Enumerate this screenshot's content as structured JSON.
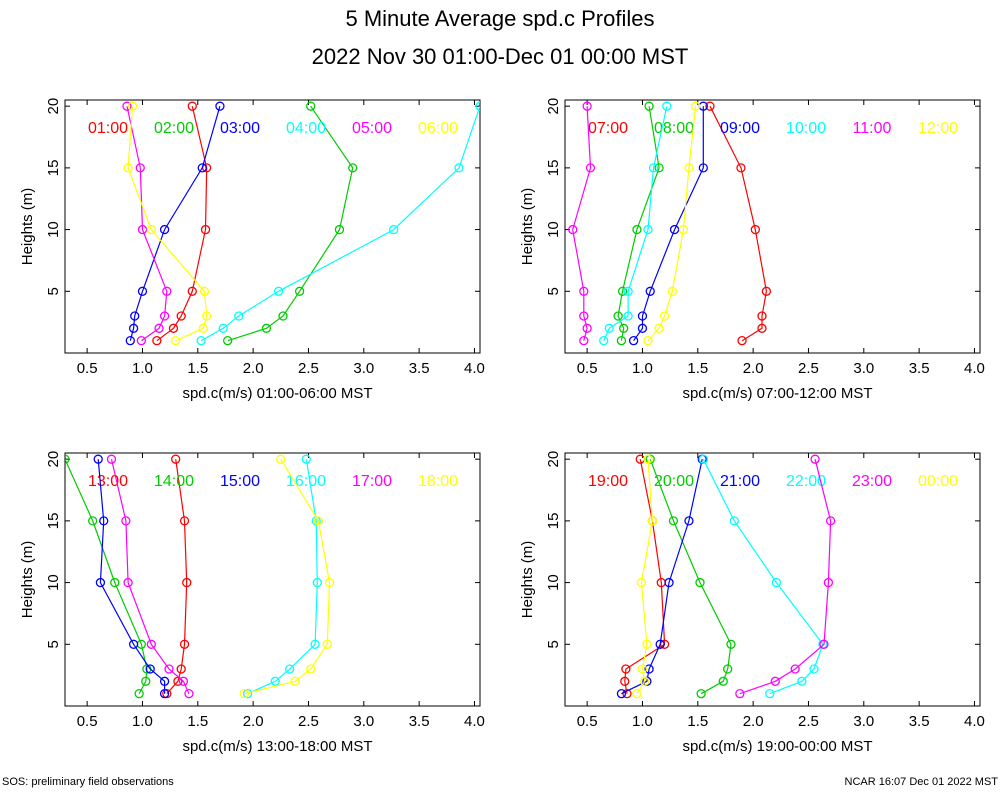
{
  "title": "5 Minute Average spd.c Profiles",
  "subtitle": "2022 Nov 30 01:00-Dec 01 00:00 MST",
  "footer_left": "SOS: preliminary field observations",
  "footer_right": "NCAR 16:07 Dec 01 2022 MST",
  "colors": [
    "#ff0000",
    "#00cc00",
    "#0000ff",
    "#00ffff",
    "#ff00ff",
    "#ffff00"
  ],
  "chart_data": [
    {
      "type": "line",
      "xlabel": "spd.c(m/s) 01:00-06:00 MST",
      "ylabel": "Heights (m)",
      "xlim": [
        0.3,
        4.05
      ],
      "ylim": [
        0,
        20.5
      ],
      "xticks": [
        "0.5",
        "1.0",
        "1.5",
        "2.0",
        "2.5",
        "3.0",
        "3.5",
        "4.0"
      ],
      "yticks": [
        "5",
        "10",
        "15",
        "20"
      ],
      "heights": [
        1,
        2,
        3,
        5,
        10,
        15,
        20
      ],
      "series": [
        {
          "name": "01:00",
          "values": [
            1.13,
            1.28,
            1.35,
            1.45,
            1.57,
            1.58,
            1.45
          ]
        },
        {
          "name": "02:00",
          "values": [
            1.77,
            2.12,
            2.27,
            2.42,
            2.78,
            2.9,
            2.52
          ]
        },
        {
          "name": "03:00",
          "values": [
            0.89,
            0.92,
            0.93,
            1.0,
            1.2,
            1.54,
            1.7
          ]
        },
        {
          "name": "04:00",
          "values": [
            1.53,
            1.73,
            1.87,
            2.23,
            3.27,
            3.86,
            4.05
          ]
        },
        {
          "name": "05:00",
          "values": [
            0.99,
            1.15,
            1.2,
            1.22,
            1.0,
            0.98,
            0.86
          ]
        },
        {
          "name": "06:00",
          "values": [
            1.3,
            1.55,
            1.58,
            1.56,
            1.08,
            0.87,
            0.91
          ]
        }
      ]
    },
    {
      "type": "line",
      "xlabel": "spd.c(m/s) 07:00-12:00 MST",
      "ylabel": "Heights (m)",
      "xlim": [
        0.3,
        4.05
      ],
      "ylim": [
        0,
        20.5
      ],
      "xticks": [
        "0.5",
        "1.0",
        "1.5",
        "2.0",
        "2.5",
        "3.0",
        "3.5",
        "4.0"
      ],
      "yticks": [
        "5",
        "10",
        "15",
        "20"
      ],
      "heights": [
        1,
        2,
        3,
        5,
        10,
        15,
        20
      ],
      "series": [
        {
          "name": "07:00",
          "values": [
            1.9,
            2.08,
            2.08,
            2.12,
            2.02,
            1.89,
            1.61
          ]
        },
        {
          "name": "08:00",
          "values": [
            0.81,
            0.83,
            0.78,
            0.82,
            0.95,
            1.15,
            1.06
          ]
        },
        {
          "name": "09:00",
          "values": [
            0.92,
            1.0,
            1.0,
            1.07,
            1.29,
            1.55,
            1.55
          ]
        },
        {
          "name": "10:00",
          "values": [
            0.65,
            0.7,
            0.87,
            0.87,
            1.05,
            1.1,
            1.22
          ]
        },
        {
          "name": "11:00",
          "values": [
            0.47,
            0.5,
            0.47,
            0.47,
            0.37,
            0.53,
            0.5
          ]
        },
        {
          "name": "12:00",
          "values": [
            1.05,
            1.15,
            1.2,
            1.27,
            1.37,
            1.42,
            1.48
          ]
        }
      ]
    },
    {
      "type": "line",
      "xlabel": "spd.c(m/s) 13:00-18:00 MST",
      "ylabel": "Heights (m)",
      "xlim": [
        0.3,
        4.05
      ],
      "ylim": [
        0,
        20.5
      ],
      "xticks": [
        "0.5",
        "1.0",
        "1.5",
        "2.0",
        "2.5",
        "3.0",
        "3.5",
        "4.0"
      ],
      "yticks": [
        "5",
        "10",
        "15",
        "20"
      ],
      "heights": [
        1,
        2,
        3,
        5,
        10,
        15,
        20
      ],
      "series": [
        {
          "name": "13:00",
          "values": [
            1.22,
            1.32,
            1.35,
            1.38,
            1.4,
            1.38,
            1.3
          ]
        },
        {
          "name": "14:00",
          "values": [
            0.97,
            1.03,
            1.04,
            0.99,
            0.75,
            0.55,
            0.3
          ]
        },
        {
          "name": "15:00",
          "values": [
            1.2,
            1.2,
            1.07,
            0.92,
            0.62,
            0.65,
            0.6
          ]
        },
        {
          "name": "16:00",
          "values": [
            1.95,
            2.2,
            2.33,
            2.56,
            2.58,
            2.57,
            2.48
          ]
        },
        {
          "name": "17:00",
          "values": [
            1.42,
            1.37,
            1.24,
            1.08,
            0.87,
            0.85,
            0.72
          ]
        },
        {
          "name": "18:00",
          "values": [
            1.92,
            2.38,
            2.52,
            2.67,
            2.69,
            2.59,
            2.25
          ]
        }
      ]
    },
    {
      "type": "line",
      "xlabel": "spd.c(m/s) 19:00-00:00 MST",
      "ylabel": "Heights (m)",
      "xlim": [
        0.3,
        4.05
      ],
      "ylim": [
        0,
        20.5
      ],
      "xticks": [
        "0.5",
        "1.0",
        "1.5",
        "2.0",
        "2.5",
        "3.0",
        "3.5",
        "4.0"
      ],
      "yticks": [
        "5",
        "10",
        "15",
        "20"
      ],
      "heights": [
        1,
        2,
        3,
        5,
        10,
        15,
        20
      ],
      "series": [
        {
          "name": "19:00",
          "values": [
            0.86,
            0.84,
            0.85,
            1.2,
            1.17,
            1.09,
            0.98
          ]
        },
        {
          "name": "20:00",
          "values": [
            1.53,
            1.73,
            1.77,
            1.8,
            1.52,
            1.28,
            1.07
          ]
        },
        {
          "name": "21:00",
          "values": [
            0.81,
            1.04,
            1.06,
            1.16,
            1.24,
            1.42,
            1.54
          ]
        },
        {
          "name": "22:00",
          "values": [
            2.15,
            2.44,
            2.55,
            2.63,
            2.21,
            1.83,
            1.55
          ]
        },
        {
          "name": "23:00",
          "values": [
            1.88,
            2.2,
            2.38,
            2.64,
            2.68,
            2.7,
            2.56
          ]
        },
        {
          "name": "00:00",
          "values": [
            0.95,
            1.02,
            1.0,
            1.04,
            0.99,
            1.09,
            1.05
          ]
        }
      ]
    }
  ]
}
